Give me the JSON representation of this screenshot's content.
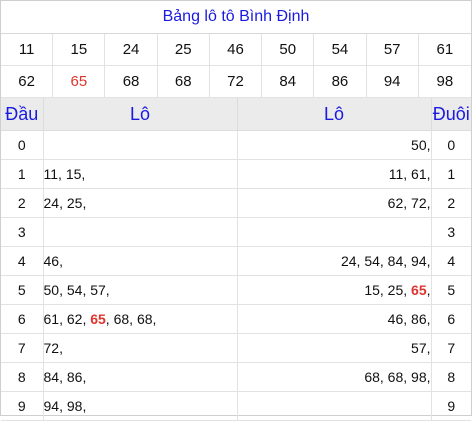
{
  "title": "Bảng lô tô Bình Định",
  "numbers_row1": [
    "11",
    "15",
    "24",
    "25",
    "46",
    "50",
    "54",
    "57",
    "61"
  ],
  "numbers_row2": [
    "62",
    "65",
    "68",
    "68",
    "72",
    "84",
    "86",
    "94",
    "98"
  ],
  "highlight_number": "65",
  "headers": {
    "dau": "Đầu",
    "lo_left": "Lô",
    "lo_right": "Lô",
    "duoi": "Đuôi"
  },
  "rows": [
    {
      "dau": "0",
      "left": [],
      "right": [
        "50"
      ],
      "duoi": "0"
    },
    {
      "dau": "1",
      "left": [
        "11",
        "15"
      ],
      "right": [
        "11",
        "61"
      ],
      "duoi": "1"
    },
    {
      "dau": "2",
      "left": [
        "24",
        "25"
      ],
      "right": [
        "62",
        "72"
      ],
      "duoi": "2"
    },
    {
      "dau": "3",
      "left": [],
      "right": [],
      "duoi": "3"
    },
    {
      "dau": "4",
      "left": [
        "46"
      ],
      "right": [
        "24",
        "54",
        "84",
        "94"
      ],
      "duoi": "4"
    },
    {
      "dau": "5",
      "left": [
        "50",
        "54",
        "57"
      ],
      "right": [
        "15",
        "25",
        "65"
      ],
      "duoi": "5"
    },
    {
      "dau": "6",
      "left": [
        "61",
        "62",
        "65",
        "68",
        "68"
      ],
      "right": [
        "46",
        "86"
      ],
      "duoi": "6"
    },
    {
      "dau": "7",
      "left": [
        "72"
      ],
      "right": [
        "57"
      ],
      "duoi": "7"
    },
    {
      "dau": "8",
      "left": [
        "84",
        "86"
      ],
      "right": [
        "68",
        "68",
        "98"
      ],
      "duoi": "8"
    },
    {
      "dau": "9",
      "left": [
        "94",
        "98"
      ],
      "right": [],
      "duoi": "9"
    }
  ],
  "colors": {
    "title": "#1a1ae0",
    "highlight": "#e0342f",
    "header_bg": "#ebebeb"
  }
}
